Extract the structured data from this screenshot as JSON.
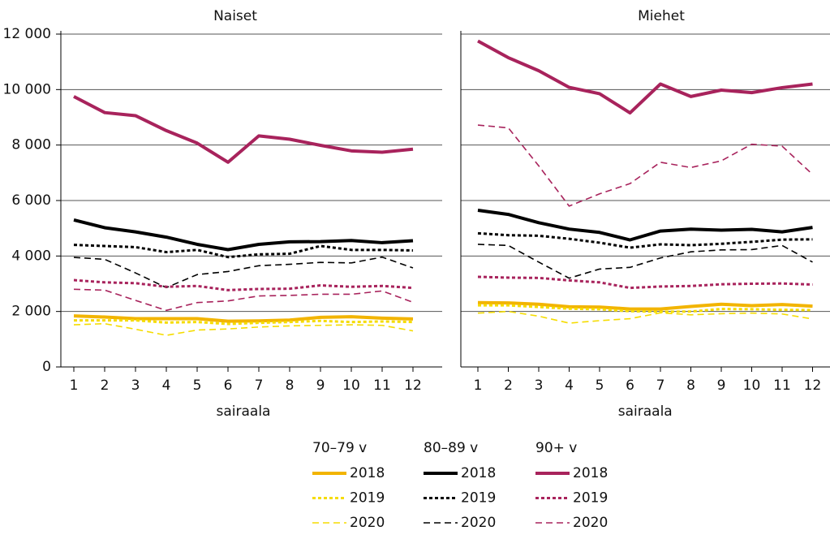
{
  "chart_data": [
    {
      "type": "line",
      "title": "Naiset",
      "xlabel": "sairaala",
      "categories": [
        "1",
        "2",
        "3",
        "4",
        "5",
        "6",
        "7",
        "8",
        "9",
        "10",
        "11",
        "12"
      ],
      "ylim": [
        0,
        12000
      ],
      "yticks": [
        0,
        {
          "value": 2000,
          "label": "2 000"
        },
        {
          "value": 4000,
          "label": "4 000"
        },
        {
          "value": 6000,
          "label": "6 000"
        },
        {
          "value": 8000,
          "label": "8 000"
        },
        {
          "value": 10000,
          "label": "10 000"
        },
        {
          "value": 12000,
          "label": "12 000"
        }
      ],
      "grid": true,
      "groups": [
        {
          "name": "70–79 v",
          "series": [
            {
              "name": "2018",
              "color": "#f2b400",
              "style": "solid",
              "values": [
                1840,
                1800,
                1740,
                1740,
                1740,
                1650,
                1660,
                1690,
                1790,
                1810,
                1760,
                1730
              ]
            },
            {
              "name": "2019",
              "color": "#f5dc00",
              "style": "dotted",
              "values": [
                1680,
                1680,
                1680,
                1600,
                1620,
                1550,
                1590,
                1620,
                1660,
                1620,
                1640,
                1620
              ]
            },
            {
              "name": "2020",
              "color": "#f5dc00",
              "style": "dashed",
              "values": [
                1520,
                1560,
                1360,
                1140,
                1330,
                1370,
                1440,
                1480,
                1500,
                1520,
                1500,
                1300
              ]
            }
          ]
        },
        {
          "name": "80–89 v",
          "series": [
            {
              "name": "2018",
              "color": "#000000",
              "style": "solid",
              "values": [
                5300,
                5020,
                4870,
                4680,
                4420,
                4230,
                4420,
                4510,
                4520,
                4560,
                4480,
                4550
              ]
            },
            {
              "name": "2019",
              "color": "#000000",
              "style": "dotted",
              "values": [
                4400,
                4360,
                4320,
                4140,
                4220,
                3960,
                4060,
                4080,
                4360,
                4220,
                4220,
                4200
              ]
            },
            {
              "name": "2020",
              "color": "#000000",
              "style": "dashed",
              "values": [
                3950,
                3880,
                3390,
                2860,
                3330,
                3440,
                3650,
                3700,
                3770,
                3750,
                3960,
                3570
              ]
            }
          ]
        },
        {
          "name": "90+ v",
          "series": [
            {
              "name": "2018",
              "color": "#a8235c",
              "style": "solid",
              "values": [
                9750,
                9170,
                9060,
                8520,
                8070,
                7380,
                8330,
                8210,
                7990,
                7790,
                7740,
                7850
              ]
            },
            {
              "name": "2019",
              "color": "#a8235c",
              "style": "dotted",
              "values": [
                3130,
                3050,
                3020,
                2890,
                2920,
                2770,
                2810,
                2820,
                2940,
                2890,
                2920,
                2850
              ]
            },
            {
              "name": "2020",
              "color": "#a8235c",
              "style": "dashed",
              "values": [
                2800,
                2770,
                2400,
                2040,
                2320,
                2380,
                2560,
                2580,
                2620,
                2620,
                2740,
                2330
              ]
            }
          ]
        }
      ]
    },
    {
      "type": "line",
      "title": "Miehet",
      "xlabel": "sairaala",
      "categories": [
        "1",
        "2",
        "3",
        "4",
        "5",
        "6",
        "7",
        "8",
        "9",
        "10",
        "11",
        "12"
      ],
      "ylim": [
        0,
        12000
      ],
      "yticks": [
        0,
        2000,
        4000,
        6000,
        8000,
        10000,
        12000
      ],
      "grid": true,
      "groups": [
        {
          "name": "70–79 v",
          "series": [
            {
              "name": "2018",
              "color": "#f2b400",
              "style": "solid",
              "values": [
                2320,
                2310,
                2260,
                2170,
                2160,
                2090,
                2090,
                2180,
                2260,
                2210,
                2250,
                2190
              ]
            },
            {
              "name": "2019",
              "color": "#f5dc00",
              "style": "dotted",
              "values": [
                2220,
                2220,
                2160,
                2100,
                2080,
                2010,
                1990,
                2000,
                2090,
                2080,
                2060,
                2050
              ]
            },
            {
              "name": "2020",
              "color": "#f5dc00",
              "style": "dashed",
              "values": [
                1940,
                2000,
                1830,
                1580,
                1670,
                1740,
                1950,
                1880,
                1920,
                1940,
                1910,
                1730
              ]
            }
          ]
        },
        {
          "name": "80–89 v",
          "series": [
            {
              "name": "2018",
              "color": "#000000",
              "style": "solid",
              "values": [
                5650,
                5500,
                5200,
                4970,
                4850,
                4580,
                4900,
                4970,
                4930,
                4960,
                4870,
                5030
              ]
            },
            {
              "name": "2019",
              "color": "#000000",
              "style": "dotted",
              "values": [
                4820,
                4750,
                4730,
                4620,
                4480,
                4300,
                4420,
                4390,
                4440,
                4510,
                4590,
                4600
              ]
            },
            {
              "name": "2020",
              "color": "#000000",
              "style": "dashed",
              "values": [
                4420,
                4380,
                3780,
                3200,
                3530,
                3590,
                3930,
                4150,
                4220,
                4230,
                4380,
                3780
              ]
            }
          ]
        },
        {
          "name": "90+ v",
          "series": [
            {
              "name": "2018",
              "color": "#a8235c",
              "style": "solid",
              "values": [
                11750,
                11150,
                10680,
                10080,
                9850,
                9160,
                10200,
                9750,
                9980,
                9890,
                10070,
                10200
              ]
            },
            {
              "name": "2019",
              "color": "#a8235c",
              "style": "dotted",
              "values": [
                3250,
                3220,
                3210,
                3120,
                3050,
                2850,
                2900,
                2920,
                2980,
                3000,
                3010,
                2970
              ]
            },
            {
              "name": "2020",
              "color": "#a8235c",
              "style": "dashed",
              "values": [
                8720,
                8620,
                7250,
                5800,
                6240,
                6610,
                7380,
                7190,
                7430,
                8030,
                7960,
                6940
              ]
            }
          ]
        }
      ]
    }
  ]
}
